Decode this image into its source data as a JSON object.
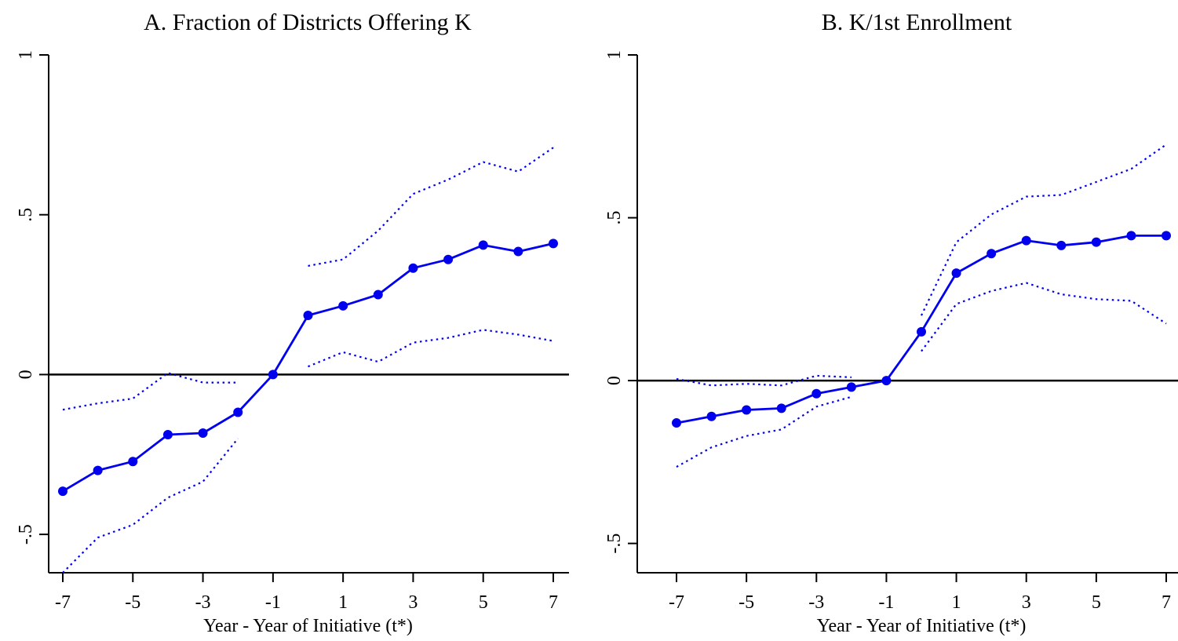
{
  "colors": {
    "series": "#0000ee",
    "axis": "#000000",
    "background": "#ffffff"
  },
  "chart_data": [
    {
      "type": "line",
      "title": "A. Fraction of Districts Offering K",
      "xlabel": "Year - Year of Initiative (t*)",
      "ylabel": "",
      "xlim": [
        -7,
        7
      ],
      "ylim": [
        -0.62,
        1
      ],
      "x_ticks": [
        "-7",
        "-5",
        "-3",
        "-1",
        "1",
        "3",
        "5",
        "7"
      ],
      "y_ticks": [
        "-.5",
        "0",
        ".5",
        "1"
      ],
      "y_tick_values": [
        -0.5,
        0,
        0.5,
        1
      ],
      "reference_line_y": 0,
      "x": [
        -7,
        -6,
        -5,
        -4,
        -3,
        -2,
        -1,
        0,
        1,
        2,
        3,
        4,
        5,
        6,
        7
      ],
      "series": [
        {
          "role": "estimate",
          "style": "solid-markers",
          "values": [
            -0.365,
            -0.3,
            -0.272,
            -0.188,
            -0.183,
            -0.118,
            0.0,
            0.185,
            0.215,
            0.25,
            0.333,
            0.36,
            0.405,
            0.385,
            0.41
          ]
        },
        {
          "role": "upper",
          "style": "dotted",
          "values": [
            -0.11,
            -0.09,
            -0.075,
            0.005,
            -0.025,
            -0.025,
            null,
            0.34,
            0.36,
            0.45,
            0.565,
            0.61,
            0.665,
            0.635,
            0.71
          ]
        },
        {
          "role": "lower",
          "style": "dotted",
          "values": [
            -0.62,
            -0.51,
            -0.47,
            -0.385,
            -0.335,
            -0.2,
            null,
            0.025,
            0.07,
            0.04,
            0.1,
            0.115,
            0.14,
            0.125,
            0.105
          ]
        }
      ]
    },
    {
      "type": "line",
      "title": "B. K/1st Enrollment",
      "xlabel": "Year - Year of Initiative (t*)",
      "ylabel": "",
      "xlim": [
        -7,
        7
      ],
      "ylim": [
        -0.59,
        1
      ],
      "x_ticks": [
        "-7",
        "-5",
        "-3",
        "-1",
        "1",
        "3",
        "5",
        "7"
      ],
      "y_ticks": [
        "-.5",
        "0",
        ".5",
        "1"
      ],
      "y_tick_values": [
        -0.5,
        0,
        0.5,
        1
      ],
      "reference_line_y": 0,
      "x": [
        -7,
        -6,
        -5,
        -4,
        -3,
        -2,
        -1,
        0,
        1,
        2,
        3,
        4,
        5,
        6,
        7
      ],
      "series": [
        {
          "role": "estimate",
          "style": "solid-markers",
          "values": [
            -0.13,
            -0.11,
            -0.09,
            -0.085,
            -0.04,
            -0.02,
            0.0,
            0.15,
            0.33,
            0.39,
            0.43,
            0.415,
            0.425,
            0.445,
            0.445
          ]
        },
        {
          "role": "upper",
          "style": "dotted",
          "values": [
            0.005,
            -0.015,
            -0.01,
            -0.015,
            0.015,
            0.01,
            null,
            0.2,
            0.425,
            0.51,
            0.565,
            0.57,
            0.61,
            0.65,
            0.725
          ]
        },
        {
          "role": "lower",
          "style": "dotted",
          "values": [
            -0.265,
            -0.205,
            -0.17,
            -0.15,
            -0.08,
            -0.05,
            null,
            0.09,
            0.235,
            0.275,
            0.3,
            0.265,
            0.25,
            0.245,
            0.175
          ]
        }
      ]
    }
  ]
}
